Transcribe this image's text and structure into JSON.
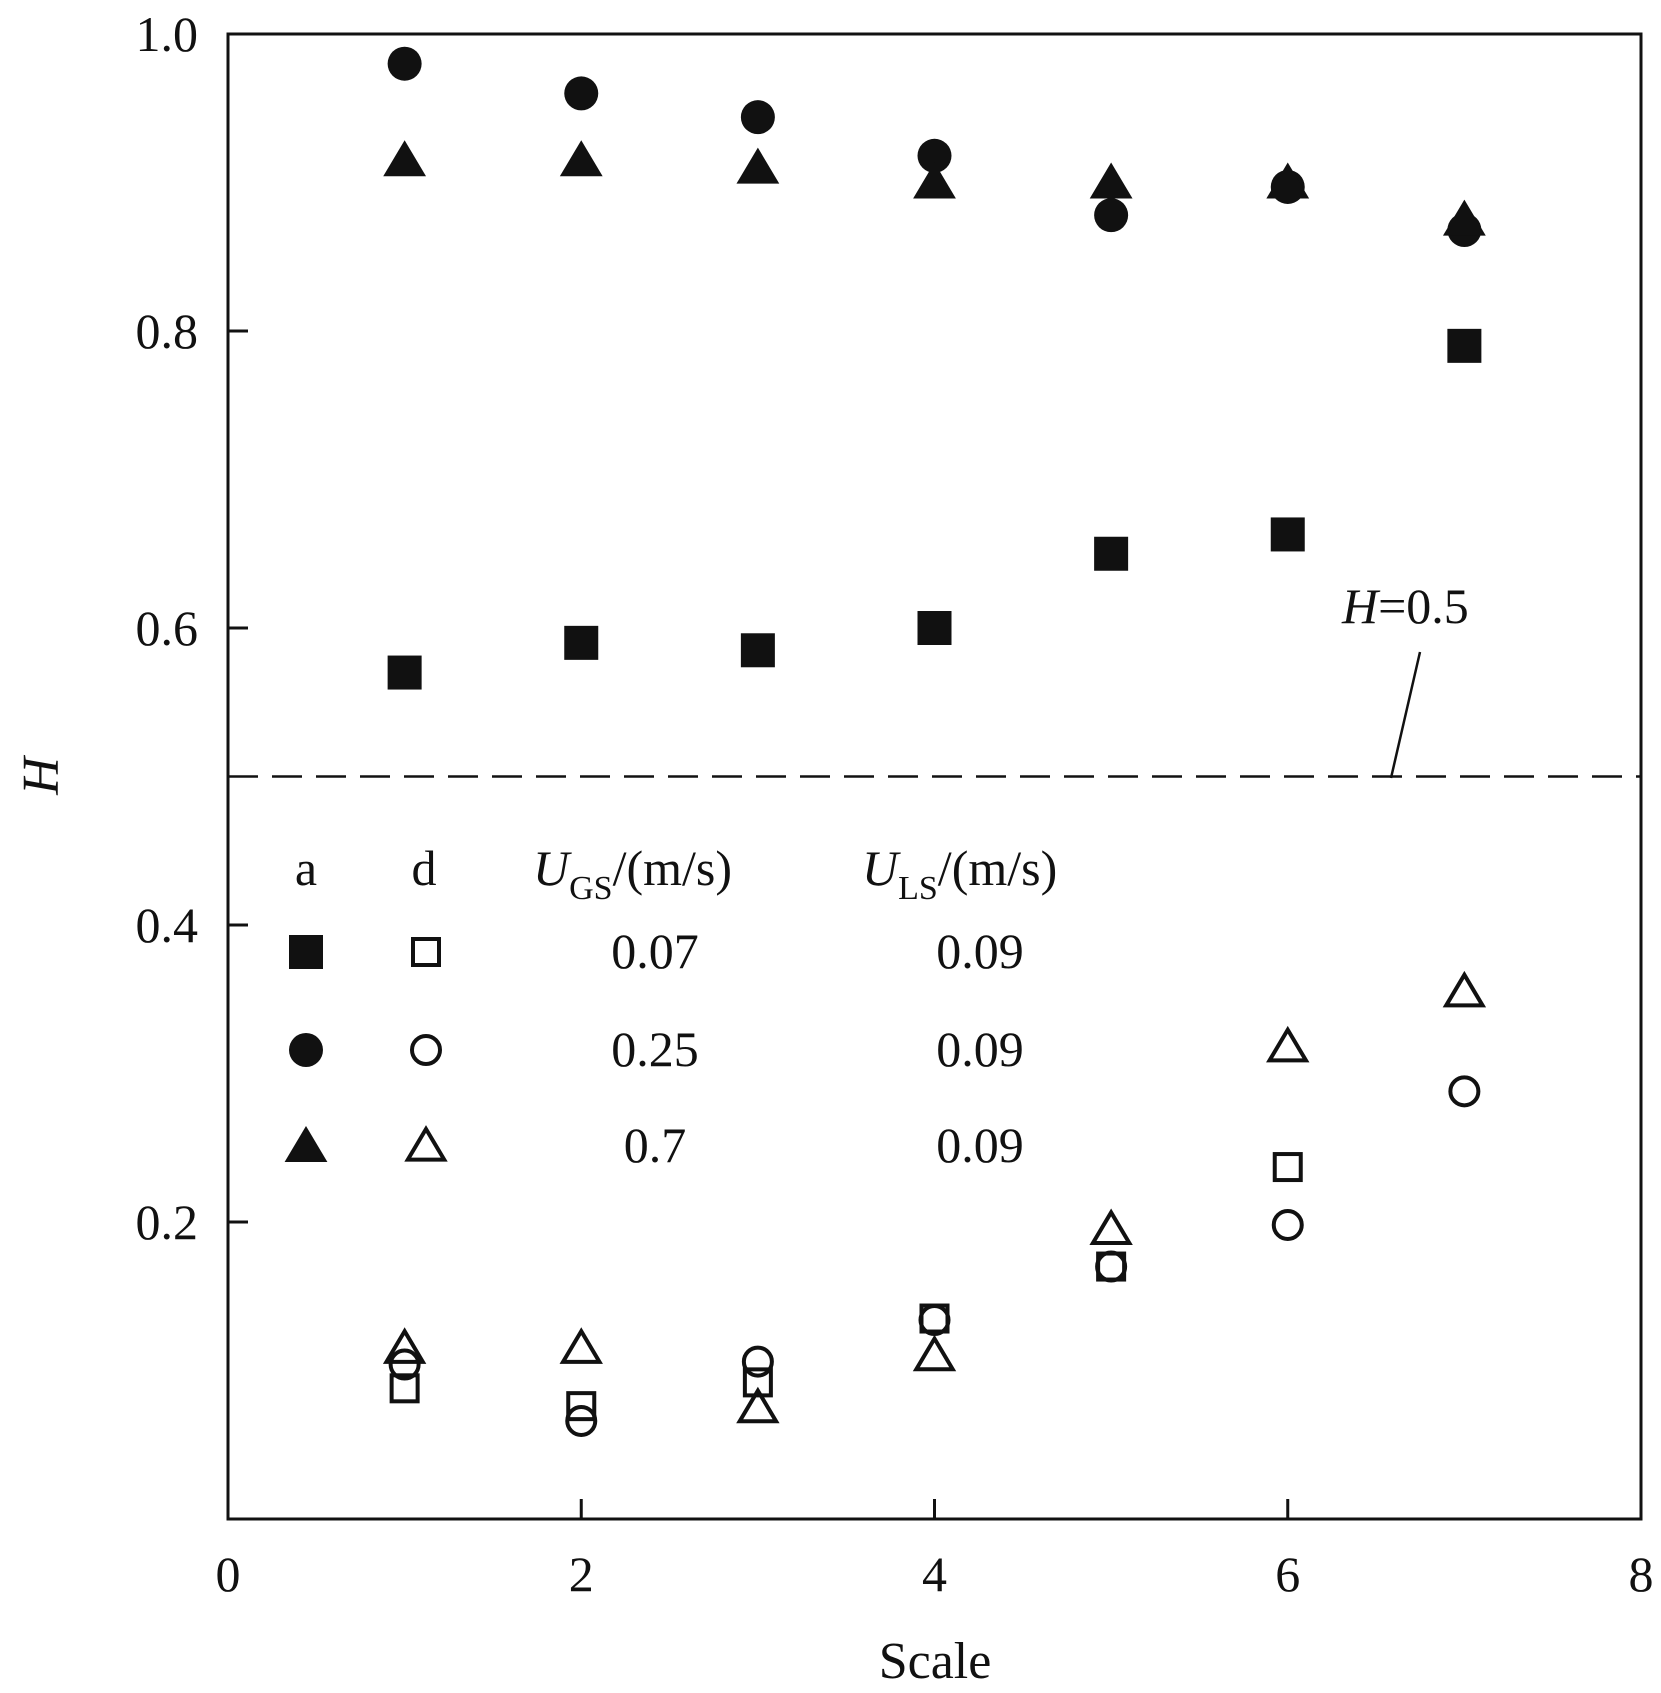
{
  "chart_data": {
    "type": "scatter",
    "title": "",
    "xlabel": "Scale",
    "ylabel": "H",
    "xlim": [
      0,
      8
    ],
    "ylim": [
      0,
      1.0
    ],
    "x_ticks": [
      {
        "value": 0,
        "label": "0"
      },
      {
        "value": 2,
        "label": "2"
      },
      {
        "value": 4,
        "label": "4"
      },
      {
        "value": 6,
        "label": "6"
      },
      {
        "value": 8,
        "label": "8"
      }
    ],
    "y_ticks": [
      {
        "value": 0.2,
        "label": "0.2"
      },
      {
        "value": 0.4,
        "label": "0.4"
      },
      {
        "value": 0.6,
        "label": "0.6"
      },
      {
        "value": 0.8,
        "label": "0.8"
      },
      {
        "value": 1.0,
        "label": "1.0"
      }
    ],
    "grid": false,
    "legend_position": "lower-left",
    "reference_line": {
      "y": 0.5,
      "style": "dashed",
      "label_italic": "H",
      "label_rest": "=0.5"
    },
    "legend": {
      "headers": {
        "col_a": "a",
        "col_d": "d",
        "ugs_symbol": "U",
        "ugs_sub": "GS",
        "ugs_unit": "/(m/s)",
        "uls_symbol": "U",
        "uls_sub": "LS",
        "uls_unit": "/(m/s)"
      },
      "rows": [
        {
          "marker": "square",
          "ugs": "0.07",
          "uls": "0.09"
        },
        {
          "marker": "circle",
          "ugs": "0.25",
          "uls": "0.09"
        },
        {
          "marker": "triangle",
          "ugs": "0.7",
          "uls": "0.09"
        }
      ]
    },
    "series": [
      {
        "marker": "square",
        "fill": "filled",
        "x": [
          1,
          2,
          3,
          4,
          5,
          6,
          7
        ],
        "y": [
          0.57,
          0.59,
          0.585,
          0.6,
          0.65,
          0.663,
          0.79
        ]
      },
      {
        "marker": "circle",
        "fill": "filled",
        "x": [
          1,
          2,
          3,
          4,
          5,
          6,
          7
        ],
        "y": [
          0.98,
          0.96,
          0.944,
          0.918,
          0.878,
          0.897,
          0.868
        ]
      },
      {
        "marker": "triangle",
        "fill": "filled",
        "x": [
          1,
          2,
          3,
          4,
          5,
          6,
          7
        ],
        "y": [
          0.915,
          0.915,
          0.91,
          0.9,
          0.9,
          0.9,
          0.875
        ]
      },
      {
        "marker": "square",
        "fill": "open",
        "x": [
          1,
          2,
          3,
          4,
          5,
          6
        ],
        "y": [
          0.088,
          0.076,
          0.092,
          0.135,
          0.17,
          0.237
        ]
      },
      {
        "marker": "circle",
        "fill": "open",
        "x": [
          1,
          2,
          3,
          4,
          5,
          6,
          7
        ],
        "y": [
          0.104,
          0.066,
          0.106,
          0.134,
          0.17,
          0.198,
          0.288
        ]
      },
      {
        "marker": "triangle",
        "fill": "open",
        "x": [
          1,
          2,
          3,
          4,
          5,
          6,
          7
        ],
        "y": [
          0.115,
          0.115,
          0.075,
          0.11,
          0.195,
          0.318,
          0.355
        ]
      }
    ]
  },
  "colors": {
    "marker": "#111111",
    "axis": "#111111",
    "background": "#ffffff"
  }
}
